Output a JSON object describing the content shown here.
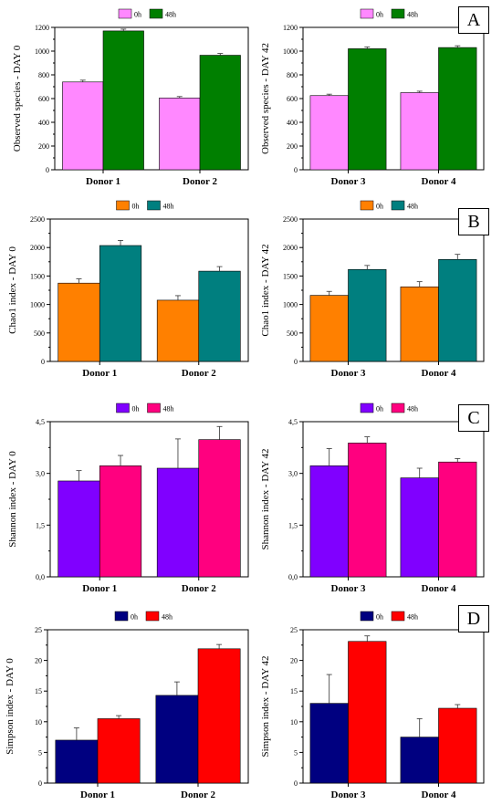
{
  "panel_letters": [
    "A",
    "B",
    "C",
    "D"
  ],
  "chart_data": [
    {
      "type": "bar",
      "panel": "A",
      "categories": [
        "Donor 1",
        "Donor 2"
      ],
      "series": [
        {
          "name": "0h",
          "values": [
            740,
            605
          ],
          "errors": [
            15,
            12
          ],
          "color": "#ff88ff"
        },
        {
          "name": "48h",
          "values": [
            1170,
            965
          ],
          "errors": [
            15,
            15
          ],
          "color": "#007f00"
        }
      ],
      "ylabel": "Observed species - DAY 0",
      "ylim": [
        0,
        1200
      ],
      "yticks": [
        "0",
        "200",
        "400",
        "600",
        "800",
        "1000",
        "1200"
      ],
      "legend": "top-center"
    },
    {
      "type": "bar",
      "panel": "A",
      "categories": [
        "Donor 3",
        "Donor 4"
      ],
      "series": [
        {
          "name": "0h",
          "values": [
            625,
            650
          ],
          "errors": [
            12,
            12
          ],
          "color": "#ff88ff"
        },
        {
          "name": "48h",
          "values": [
            1020,
            1030
          ],
          "errors": [
            15,
            15
          ],
          "color": "#007f00"
        }
      ],
      "ylabel": "Observed species - DAY 42",
      "ylim": [
        0,
        1200
      ],
      "yticks": [
        "0",
        "200",
        "400",
        "600",
        "800",
        "1000",
        "1200"
      ],
      "legend": "top-center"
    },
    {
      "type": "bar",
      "panel": "B",
      "categories": [
        "Donor 1",
        "Donor 2"
      ],
      "series": [
        {
          "name": "0h",
          "values": [
            1375,
            1075
          ],
          "errors": [
            75,
            80
          ],
          "color": "#ff8000"
        },
        {
          "name": "48h",
          "values": [
            2035,
            1585
          ],
          "errors": [
            90,
            80
          ],
          "color": "#007f7f"
        }
      ],
      "ylabel": "Chao1 index - DAY 0",
      "ylim": [
        0,
        2500
      ],
      "yticks": [
        "0",
        "500",
        "1000",
        "1500",
        "2000",
        "2500"
      ],
      "legend": "top-center"
    },
    {
      "type": "bar",
      "panel": "B",
      "categories": [
        "Donor 3",
        "Donor 4"
      ],
      "series": [
        {
          "name": "0h",
          "values": [
            1160,
            1310
          ],
          "errors": [
            70,
            90
          ],
          "color": "#ff8000"
        },
        {
          "name": "48h",
          "values": [
            1615,
            1790
          ],
          "errors": [
            70,
            90
          ],
          "color": "#007f7f"
        }
      ],
      "ylabel": "Chao1 index - DAY 42",
      "ylim": [
        0,
        2500
      ],
      "yticks": [
        "0",
        "500",
        "1000",
        "1500",
        "2000",
        "2500"
      ],
      "legend": "top-center"
    },
    {
      "type": "bar",
      "panel": "C",
      "categories": [
        "Donor 1",
        "Donor 2"
      ],
      "series": [
        {
          "name": "0h",
          "values": [
            2.78,
            3.15
          ],
          "errors": [
            0.3,
            0.85
          ],
          "color": "#8000ff"
        },
        {
          "name": "48h",
          "values": [
            3.22,
            3.98
          ],
          "errors": [
            0.3,
            0.38
          ],
          "color": "#ff007f"
        }
      ],
      "ylabel": "Shannon index - DAY 0",
      "ylim": [
        0,
        4.5
      ],
      "yticks": [
        "0,0",
        "1,5",
        "3,0",
        "4,5"
      ],
      "legend": "top-center"
    },
    {
      "type": "bar",
      "panel": "C",
      "categories": [
        "Donor 3",
        "Donor 4"
      ],
      "series": [
        {
          "name": "0h",
          "values": [
            3.22,
            2.87
          ],
          "errors": [
            0.5,
            0.28
          ],
          "color": "#8000ff"
        },
        {
          "name": "48h",
          "values": [
            3.88,
            3.33
          ],
          "errors": [
            0.18,
            0.1
          ],
          "color": "#ff007f"
        }
      ],
      "ylabel": "Shannon index - DAY 42",
      "ylim": [
        0,
        4.5
      ],
      "yticks": [
        "0,0",
        "1,5",
        "3,0",
        "4,5"
      ],
      "legend": "top-center"
    },
    {
      "type": "bar",
      "panel": "D",
      "categories": [
        "Donor 1",
        "Donor 2"
      ],
      "series": [
        {
          "name": "0h",
          "values": [
            7.0,
            14.3
          ],
          "errors": [
            2.0,
            2.2
          ],
          "color": "#000080"
        },
        {
          "name": "48h",
          "values": [
            10.5,
            21.9
          ],
          "errors": [
            0.5,
            0.7
          ],
          "color": "#ff0000"
        }
      ],
      "ylabel": "Simpson index - DAY 0",
      "ylim": [
        0,
        25
      ],
      "yticks": [
        "0",
        "5",
        "10",
        "15",
        "20",
        "25"
      ],
      "legend": "top-center"
    },
    {
      "type": "bar",
      "panel": "D",
      "categories": [
        "Donor 3",
        "Donor 4"
      ],
      "series": [
        {
          "name": "0h",
          "values": [
            13.0,
            7.5
          ],
          "errors": [
            4.7,
            3.0
          ],
          "color": "#000080"
        },
        {
          "name": "48h",
          "values": [
            23.1,
            12.2
          ],
          "errors": [
            0.9,
            0.6
          ],
          "color": "#ff0000"
        }
      ],
      "ylabel": "Simpson index - DAY 42",
      "ylim": [
        0,
        25
      ],
      "yticks": [
        "0",
        "5",
        "10",
        "15",
        "20",
        "25"
      ],
      "legend": "top-center"
    }
  ]
}
